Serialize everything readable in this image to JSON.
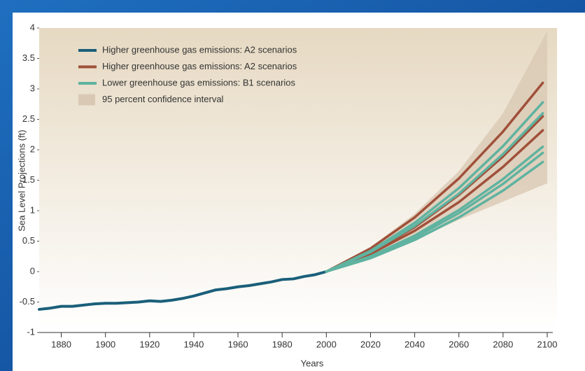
{
  "chart_data": {
    "type": "line",
    "xlabel": "Years",
    "ylabel": "Sea Level Projections (ft)",
    "xlim": [
      1870,
      2100
    ],
    "xticks": [
      1880,
      1900,
      1920,
      1940,
      1960,
      1980,
      2000,
      2020,
      2040,
      2060,
      2080,
      2100
    ],
    "ylim": [
      -1,
      4
    ],
    "yticks": [
      -1,
      -0.5,
      0,
      0.5,
      1,
      1.5,
      2,
      2.5,
      3,
      3.5,
      4
    ],
    "band": {
      "name": "95 percent confidence interval",
      "color": "#d9c9b4",
      "x": [
        2000,
        2020,
        2040,
        2060,
        2080,
        2100
      ],
      "lower": [
        0,
        0.22,
        0.52,
        0.85,
        1.15,
        1.45
      ],
      "upper": [
        0,
        0.4,
        0.95,
        1.65,
        2.6,
        3.95
      ]
    },
    "series": [
      {
        "name": "Higher greenhouse gas emissions: A2 scenarios",
        "color": "#1a5f7a",
        "x": [
          1870,
          1875,
          1880,
          1885,
          1890,
          1895,
          1900,
          1905,
          1910,
          1915,
          1920,
          1925,
          1930,
          1935,
          1940,
          1945,
          1950,
          1955,
          1960,
          1965,
          1970,
          1975,
          1980,
          1985,
          1990,
          1995,
          2000
        ],
        "values": [
          [
            -0.62,
            -0.6,
            -0.57,
            -0.57,
            -0.55,
            -0.53,
            -0.52,
            -0.52,
            -0.51,
            -0.5,
            -0.48,
            -0.49,
            -0.47,
            -0.44,
            -0.4,
            -0.35,
            -0.3,
            -0.28,
            -0.25,
            -0.23,
            -0.2,
            -0.17,
            -0.13,
            -0.12,
            -0.08,
            -0.05,
            0
          ]
        ]
      },
      {
        "name": "Higher greenhouse gas emissions: A2 scenarios",
        "color": "#a0503a",
        "x": [
          2000,
          2020,
          2040,
          2060,
          2080,
          2098
        ],
        "values": [
          [
            0,
            0.38,
            0.89,
            1.53,
            2.3,
            3.1
          ],
          [
            0,
            0.31,
            0.73,
            1.26,
            1.89,
            2.55
          ],
          [
            0,
            0.29,
            0.67,
            1.14,
            1.72,
            2.32
          ]
        ]
      },
      {
        "name": "Lower greenhouse gas emissions: B1 scenarios",
        "color": "#5fb3a0",
        "x": [
          2000,
          2020,
          2040,
          2060,
          2080,
          2098
        ],
        "values": [
          [
            0,
            0.34,
            0.8,
            1.37,
            2.06,
            2.78
          ],
          [
            0,
            0.32,
            0.75,
            1.28,
            1.93,
            2.6
          ],
          [
            0,
            0.25,
            0.59,
            1.01,
            1.52,
            2.05
          ],
          [
            0,
            0.24,
            0.56,
            0.96,
            1.44,
            1.95
          ],
          [
            0,
            0.22,
            0.52,
            0.89,
            1.33,
            1.8
          ]
        ]
      }
    ]
  }
}
